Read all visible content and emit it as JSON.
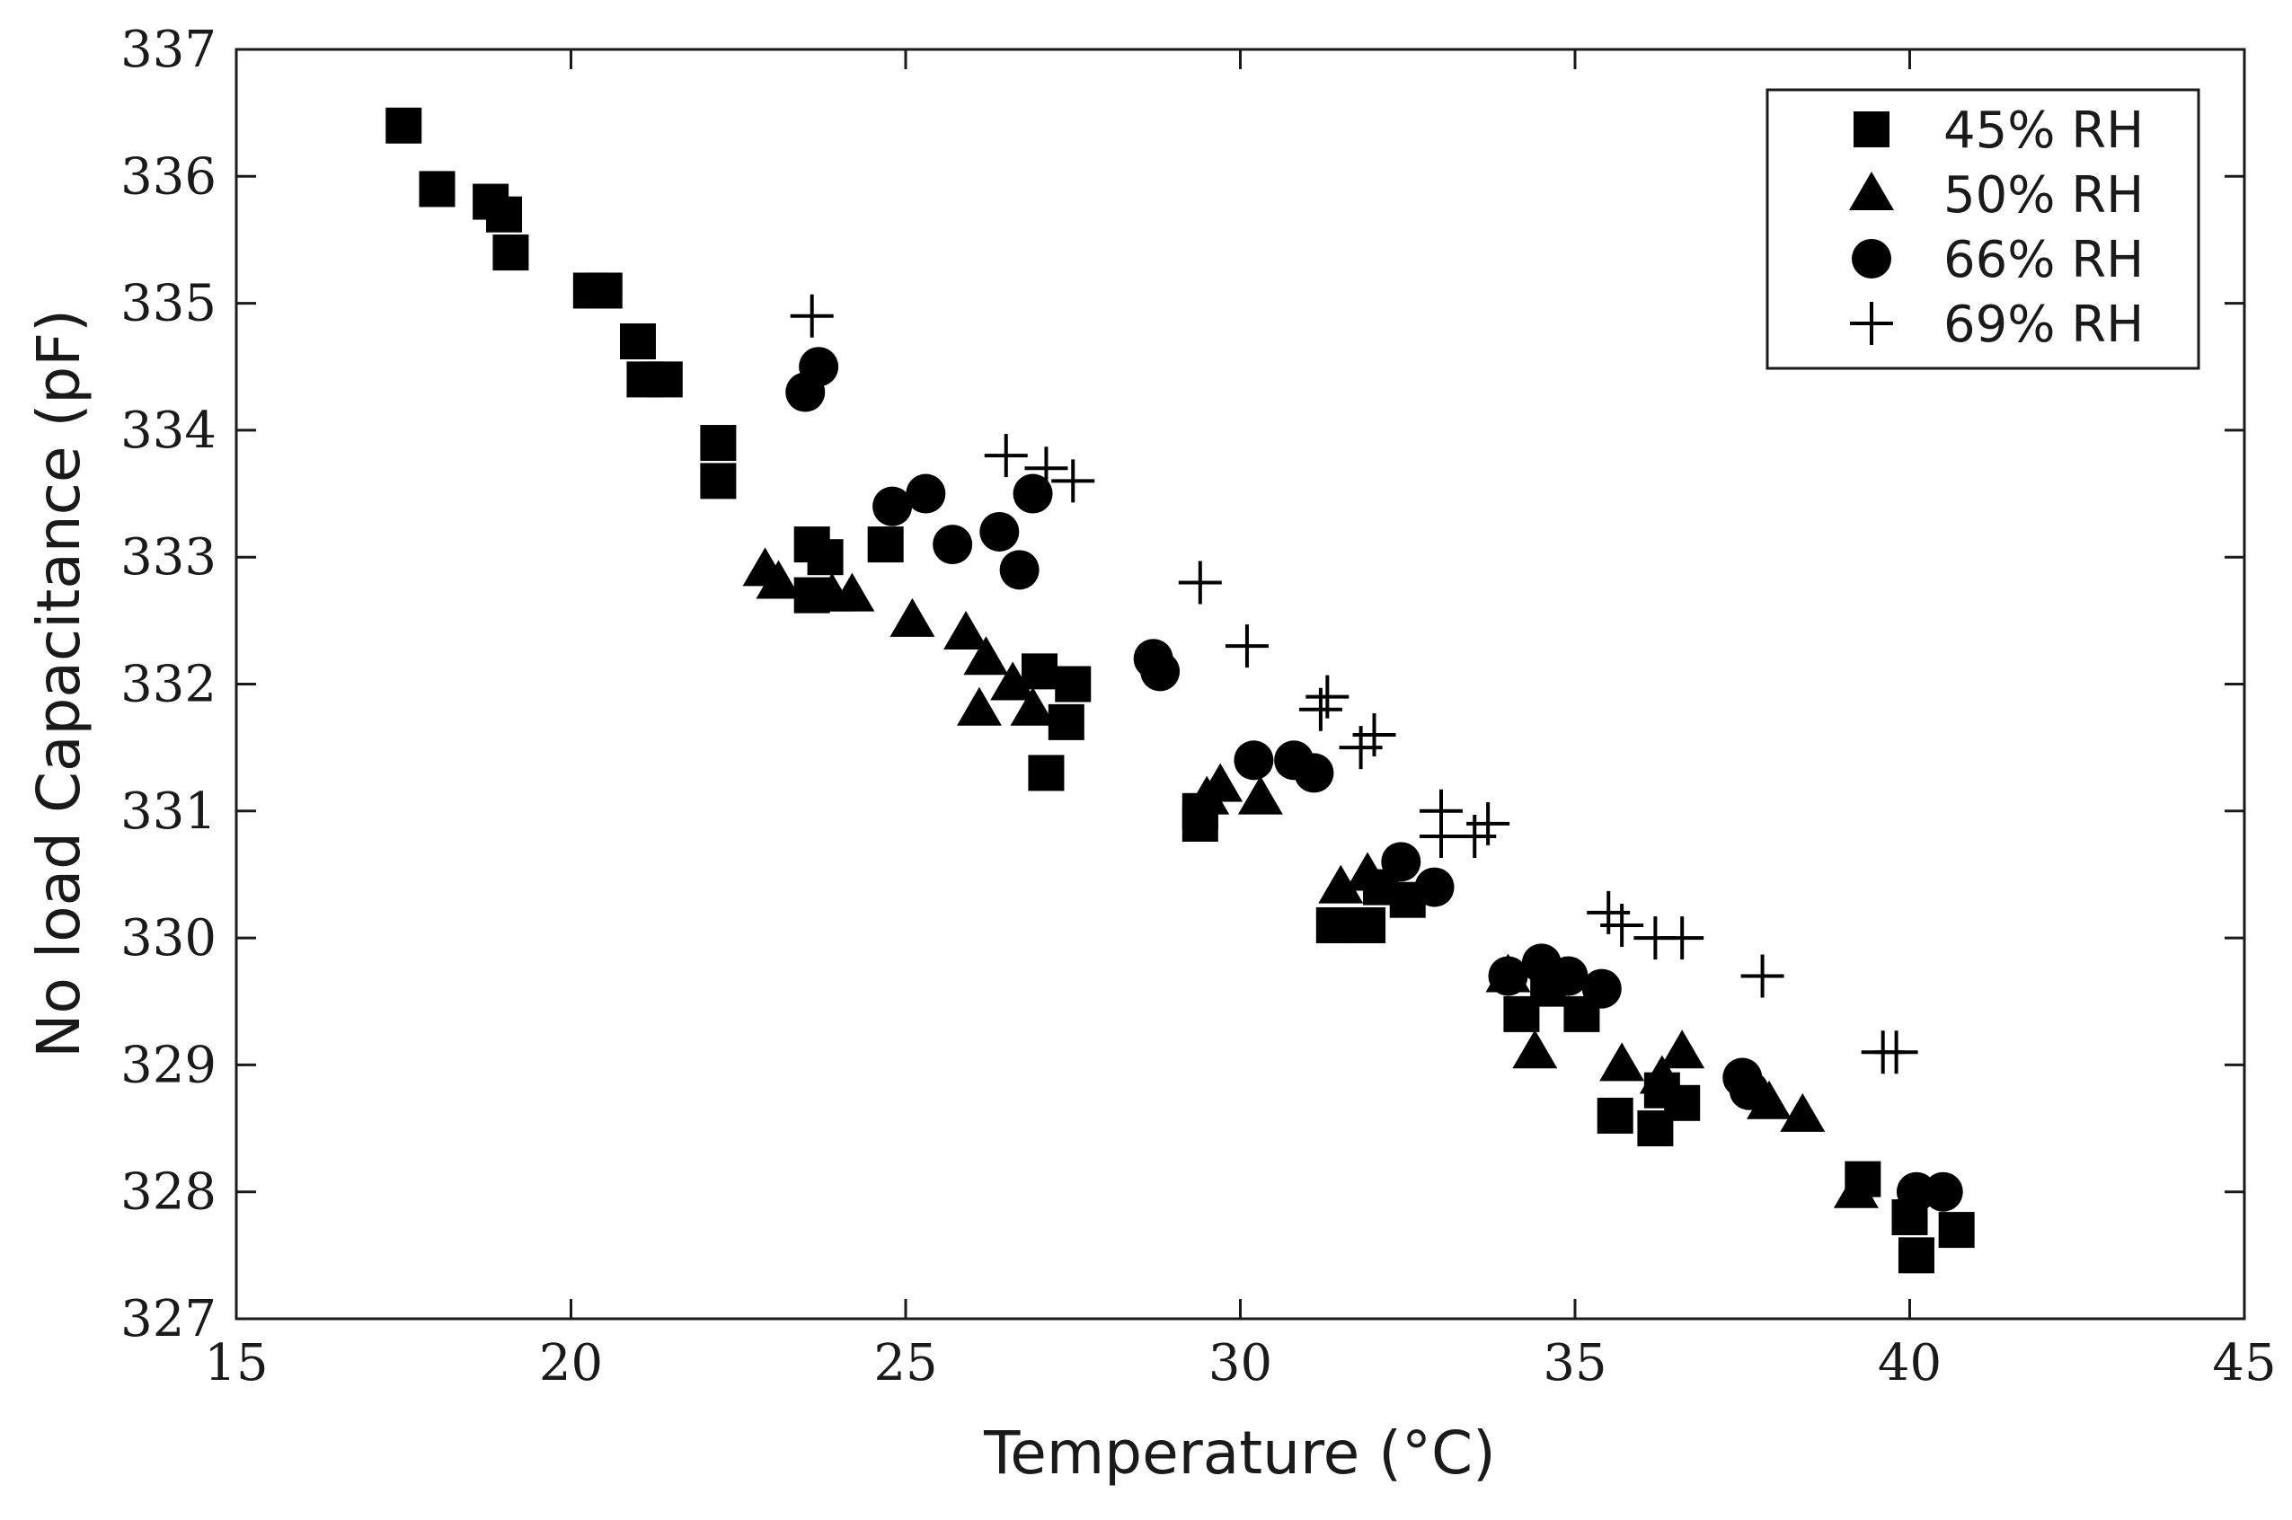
{
  "chart_data": {
    "type": "scatter",
    "title": "",
    "xlabel": "Temperature (°C)",
    "ylabel": "No load Capacitance (pF)",
    "xlim": [
      15,
      45
    ],
    "ylim": [
      327,
      337
    ],
    "xticks": [
      "15",
      "20",
      "25",
      "30",
      "35",
      "40",
      "45"
    ],
    "yticks": [
      "327",
      "328",
      "329",
      "330",
      "331",
      "332",
      "333",
      "334",
      "335",
      "336",
      "337"
    ],
    "grid": false,
    "legend_position": "top-right",
    "marker_color": "#000000",
    "series": [
      {
        "name": "45% RH",
        "marker": "square",
        "points": [
          [
            17.5,
            336.4
          ],
          [
            18.0,
            335.9
          ],
          [
            18.8,
            335.8
          ],
          [
            19.0,
            335.7
          ],
          [
            19.1,
            335.4
          ],
          [
            20.3,
            335.1
          ],
          [
            20.5,
            335.1
          ],
          [
            21.0,
            334.7
          ],
          [
            21.1,
            334.4
          ],
          [
            21.4,
            334.4
          ],
          [
            22.2,
            333.9
          ],
          [
            22.2,
            333.6
          ],
          [
            23.6,
            333.1
          ],
          [
            23.8,
            333.0
          ],
          [
            23.6,
            332.7
          ],
          [
            24.7,
            333.1
          ],
          [
            27.0,
            332.1
          ],
          [
            27.5,
            332.0
          ],
          [
            27.4,
            331.7
          ],
          [
            27.1,
            331.3
          ],
          [
            29.4,
            330.9
          ],
          [
            29.4,
            331.0
          ],
          [
            31.4,
            330.1
          ],
          [
            31.9,
            330.1
          ],
          [
            32.1,
            330.4
          ],
          [
            32.5,
            330.3
          ],
          [
            34.2,
            329.4
          ],
          [
            34.6,
            329.6
          ],
          [
            35.1,
            329.4
          ],
          [
            35.6,
            328.6
          ],
          [
            36.2,
            328.5
          ],
          [
            36.3,
            328.8
          ],
          [
            36.6,
            328.7
          ],
          [
            39.3,
            328.1
          ],
          [
            40.0,
            327.8
          ],
          [
            40.1,
            327.5
          ],
          [
            40.7,
            327.7
          ]
        ]
      },
      {
        "name": "50% RH",
        "marker": "triangle",
        "points": [
          [
            22.9,
            332.9
          ],
          [
            23.1,
            332.8
          ],
          [
            23.9,
            332.7
          ],
          [
            24.2,
            332.7
          ],
          [
            25.1,
            332.5
          ],
          [
            25.9,
            332.4
          ],
          [
            26.2,
            332.2
          ],
          [
            26.6,
            332.0
          ],
          [
            26.1,
            331.8
          ],
          [
            26.9,
            331.8
          ],
          [
            29.5,
            331.1
          ],
          [
            29.7,
            331.2
          ],
          [
            30.3,
            331.1
          ],
          [
            31.5,
            330.4
          ],
          [
            31.9,
            330.5
          ],
          [
            34.0,
            329.7
          ],
          [
            34.4,
            329.1
          ],
          [
            35.7,
            329.0
          ],
          [
            36.3,
            328.9
          ],
          [
            36.6,
            329.1
          ],
          [
            37.9,
            328.7
          ],
          [
            38.4,
            328.6
          ],
          [
            39.2,
            328.0
          ]
        ]
      },
      {
        "name": "66% RH",
        "marker": "circle",
        "points": [
          [
            23.5,
            334.3
          ],
          [
            23.7,
            334.5
          ],
          [
            24.8,
            333.4
          ],
          [
            25.3,
            333.5
          ],
          [
            25.7,
            333.1
          ],
          [
            26.4,
            333.2
          ],
          [
            26.9,
            333.5
          ],
          [
            26.7,
            332.9
          ],
          [
            28.7,
            332.2
          ],
          [
            28.8,
            332.1
          ],
          [
            30.2,
            331.4
          ],
          [
            30.8,
            331.4
          ],
          [
            31.1,
            331.3
          ],
          [
            32.4,
            330.6
          ],
          [
            32.9,
            330.4
          ],
          [
            34.0,
            329.7
          ],
          [
            34.5,
            329.8
          ],
          [
            34.9,
            329.7
          ],
          [
            35.4,
            329.6
          ],
          [
            37.5,
            328.9
          ],
          [
            37.6,
            328.8
          ],
          [
            40.1,
            328.0
          ],
          [
            40.5,
            328.0
          ]
        ]
      },
      {
        "name": "69% RH",
        "marker": "plus",
        "points": [
          [
            23.6,
            334.9
          ],
          [
            26.5,
            333.8
          ],
          [
            27.1,
            333.7
          ],
          [
            27.5,
            333.6
          ],
          [
            29.4,
            332.8
          ],
          [
            30.1,
            332.3
          ],
          [
            31.2,
            331.8
          ],
          [
            31.3,
            331.9
          ],
          [
            31.8,
            331.5
          ],
          [
            32.0,
            331.6
          ],
          [
            33.0,
            331.0
          ],
          [
            33.0,
            330.8
          ],
          [
            33.5,
            330.8
          ],
          [
            33.7,
            330.9
          ],
          [
            35.5,
            330.2
          ],
          [
            35.7,
            330.1
          ],
          [
            36.2,
            330.0
          ],
          [
            36.6,
            330.0
          ],
          [
            37.8,
            329.7
          ],
          [
            39.6,
            329.1
          ],
          [
            39.8,
            329.1
          ]
        ]
      }
    ]
  }
}
